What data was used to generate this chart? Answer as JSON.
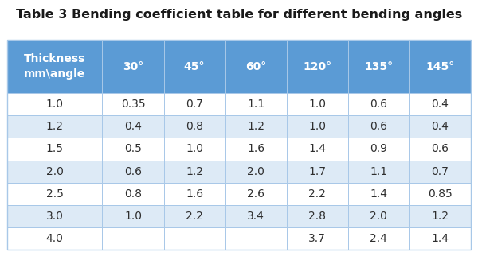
{
  "title": "Table 3 Bending coefficient table for different bending angles",
  "header": [
    "Thickness\nmm\\angle",
    "30°",
    "45°",
    "60°",
    "120°",
    "135°",
    "145°"
  ],
  "rows": [
    [
      "1.0",
      "0.35",
      "0.7",
      "1.1",
      "1.0",
      "0.6",
      "0.4"
    ],
    [
      "1.2",
      "0.4",
      "0.8",
      "1.2",
      "1.0",
      "0.6",
      "0.4"
    ],
    [
      "1.5",
      "0.5",
      "1.0",
      "1.6",
      "1.4",
      "0.9",
      "0.6"
    ],
    [
      "2.0",
      "0.6",
      "1.2",
      "2.0",
      "1.7",
      "1.1",
      "0.7"
    ],
    [
      "2.5",
      "0.8",
      "1.6",
      "2.6",
      "2.2",
      "1.4",
      "0.85"
    ],
    [
      "3.0",
      "1.0",
      "2.2",
      "3.4",
      "2.8",
      "2.0",
      "1.2"
    ],
    [
      "4.0",
      "",
      "",
      "",
      "3.7",
      "2.4",
      "1.4"
    ]
  ],
  "header_bg": "#5B9BD5",
  "header_text_color": "#FFFFFF",
  "row_bg_odd": "#FFFFFF",
  "row_bg_even": "#DDEAF6",
  "row_text_color": "#2E2E2E",
  "title_color": "#1a1a1a",
  "border_color": "#A8C8E8",
  "col_widths": [
    1.55,
    1.0,
    1.0,
    1.0,
    1.0,
    1.0,
    1.0
  ],
  "title_fontsize": 11.5,
  "header_fontsize": 10,
  "cell_fontsize": 10,
  "fig_width": 6.0,
  "fig_height": 3.22,
  "dpi": 100
}
